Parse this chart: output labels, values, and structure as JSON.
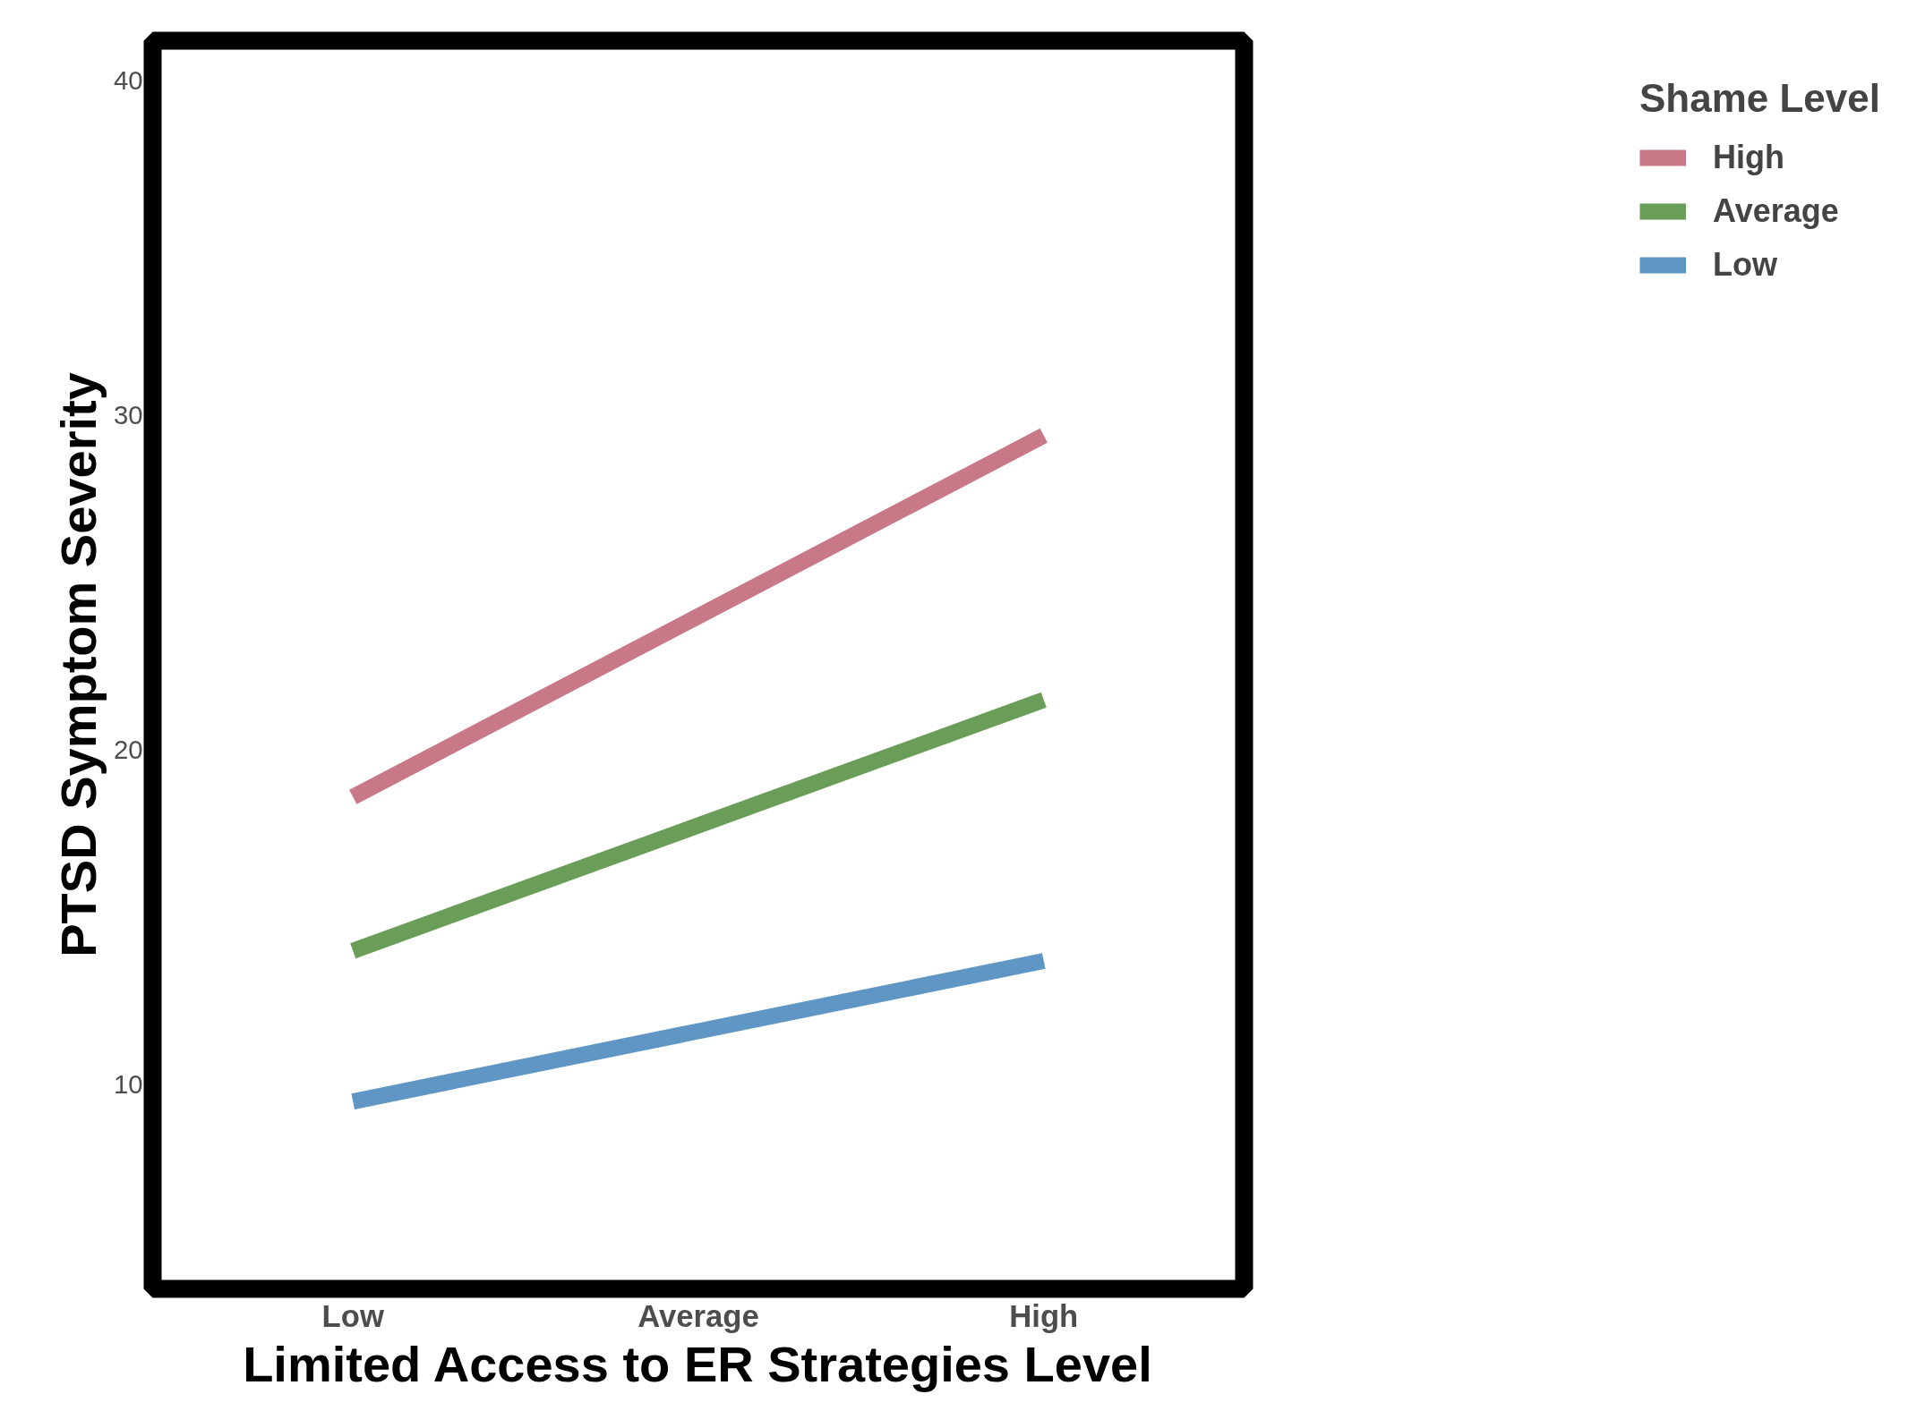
{
  "chart_data": {
    "type": "line",
    "xlabel": "Limited Access to ER Strategies Level",
    "ylabel": "PTSD Symptom Severity",
    "legend_title": "Shame Level",
    "legend": "right",
    "categories": [
      "Low",
      "Average",
      "High"
    ],
    "ylim": [
      3.9,
      41.2
    ],
    "yticks": [
      10,
      20,
      30,
      40
    ],
    "series": [
      {
        "name": "High",
        "color": "#c97888",
        "values": [
          18.6,
          24.0,
          29.4
        ]
      },
      {
        "name": "Average",
        "color": "#6a9e58",
        "values": [
          14.0,
          17.75,
          21.5
        ]
      },
      {
        "name": "Low",
        "color": "#6096c4",
        "values": [
          9.5,
          11.6,
          13.7
        ]
      }
    ]
  }
}
